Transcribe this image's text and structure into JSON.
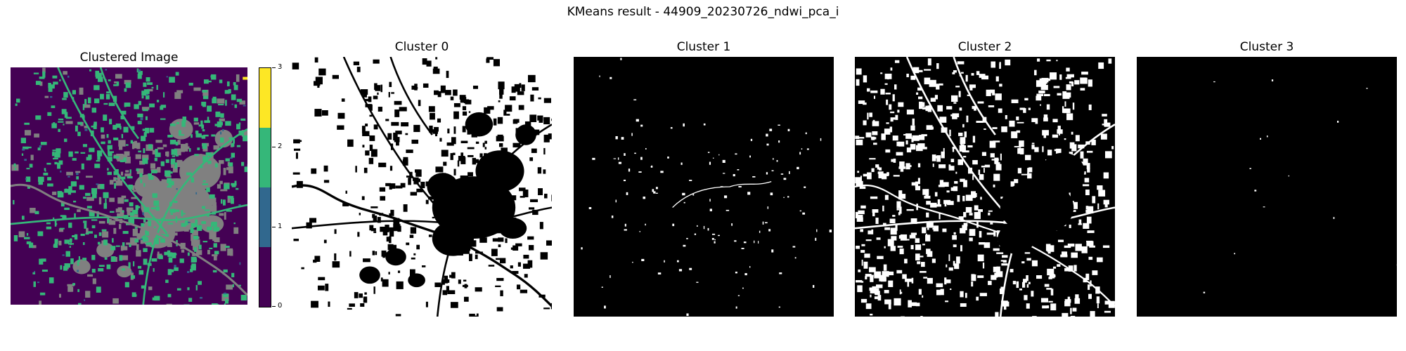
{
  "suptitle": "KMeans result - 44909_20230726_ndwi_pca_i",
  "panels": {
    "clustered": {
      "title": "Clustered Image"
    },
    "cluster0": {
      "title": "Cluster 0"
    },
    "cluster1": {
      "title": "Cluster 1"
    },
    "cluster2": {
      "title": "Cluster 2"
    },
    "cluster3": {
      "title": "Cluster 3"
    }
  },
  "colorbar": {
    "ticks": [
      "0",
      "1",
      "2",
      "3"
    ],
    "colors": [
      "#440154",
      "#31688e",
      "#35b779",
      "#fde725"
    ]
  },
  "chart_data": {
    "type": "heatmap",
    "title": "KMeans result - 44909_20230726_ndwi_pca_i",
    "subplots": [
      "Clustered Image",
      "Cluster 0",
      "Cluster 1",
      "Cluster 2",
      "Cluster 3"
    ],
    "classes": [
      0,
      1,
      2,
      3
    ],
    "colormap": "viridis",
    "colorbar_range": [
      0,
      3
    ]
  }
}
